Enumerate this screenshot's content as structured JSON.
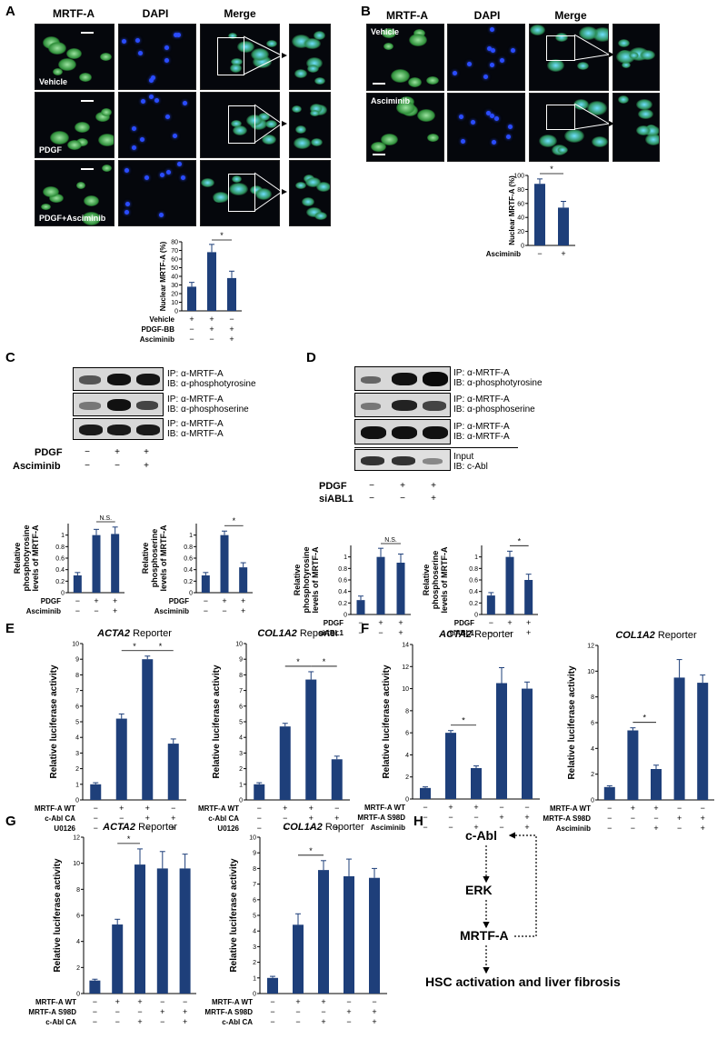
{
  "panels": {
    "A": "A",
    "B": "B",
    "C": "C",
    "D": "D",
    "E": "E",
    "F": "F",
    "G": "G",
    "H": "H"
  },
  "panelA": {
    "columns": [
      "MRTF-A",
      "DAPI",
      "Merge"
    ],
    "rows": [
      "Vehicle",
      "PDGF",
      "PDGF+Asciminib"
    ]
  },
  "panelB": {
    "columns": [
      "MRTF-A",
      "DAPI",
      "Merge"
    ],
    "rows": [
      "Vehicle",
      "Asciminib"
    ]
  },
  "panelC_blot": {
    "labels": [
      [
        "IP: α-MRTF-A",
        "IB: α-phosphotyrosine"
      ],
      [
        "IP: α-MRTF-A",
        "IB: α-phosphoserine"
      ],
      [
        "IP: α-MRTF-A",
        "IB: α-MRTF-A"
      ]
    ],
    "treatments": [
      "PDGF",
      "Asciminib"
    ],
    "signs": [
      [
        "−",
        "+",
        "+"
      ],
      [
        "−",
        "−",
        "+"
      ]
    ]
  },
  "panelD_blot": {
    "labels": [
      [
        "IP: α-MRTF-A",
        "IB: α-phosphotyrosine"
      ],
      [
        "IP: α-MRTF-A",
        "IB: α-phosphoserine"
      ],
      [
        "IP: α-MRTF-A",
        "IB: α-MRTF-A"
      ],
      [
        "Input",
        "IB: c-Abl"
      ]
    ],
    "treatments": [
      "PDGF",
      "siABL1"
    ],
    "signs": [
      [
        "−",
        "+",
        "+"
      ],
      [
        "−",
        "−",
        "+"
      ]
    ]
  },
  "panelH": {
    "nodes": [
      "c-Abl",
      "ERK",
      "MRTF-A",
      "HSC activation and liver fibrosis"
    ]
  },
  "chart_data": [
    {
      "id": "A_chart",
      "type": "bar",
      "ylabel": "Nuclear MRTF-A (%)",
      "ylim": [
        0,
        80
      ],
      "yticks": [
        0,
        10,
        20,
        30,
        40,
        50,
        60,
        70,
        80
      ],
      "values": [
        28,
        68,
        38
      ],
      "errors": [
        5,
        9,
        8
      ],
      "treatments": [
        "Vehicle",
        "PDGF-BB",
        "Asciminib"
      ],
      "signs": [
        [
          "+",
          "+",
          "−"
        ],
        [
          "−",
          "+",
          "+"
        ],
        [
          "−",
          "−",
          "+"
        ]
      ],
      "sig": [
        {
          "from": 1,
          "to": 2,
          "label": "*"
        }
      ]
    },
    {
      "id": "B_chart",
      "type": "bar",
      "ylabel": "Nuclear MRTF-A (%)",
      "ylim": [
        0,
        100
      ],
      "yticks": [
        0,
        20,
        40,
        60,
        80,
        100
      ],
      "values": [
        88,
        54
      ],
      "errors": [
        7,
        9
      ],
      "treatments": [
        "Asciminib"
      ],
      "signs": [
        [
          "−",
          "+"
        ]
      ],
      "sig": [
        {
          "from": 0,
          "to": 1,
          "label": "*"
        }
      ]
    },
    {
      "id": "C1",
      "type": "bar",
      "ylabel": [
        "Relative",
        "phosphotyrosine",
        "levels of MRTF-A"
      ],
      "ylim": [
        0,
        1.2
      ],
      "yticks": [
        0,
        0.2,
        0.4,
        0.6,
        0.8,
        1
      ],
      "values": [
        0.3,
        1.0,
        1.02
      ],
      "errors": [
        0.05,
        0.1,
        0.12
      ],
      "treatments": [
        "PDGF",
        "Asciminib"
      ],
      "signs": [
        [
          "−",
          "+",
          "+"
        ],
        [
          "−",
          "−",
          "+"
        ]
      ],
      "sig": [
        {
          "from": 1,
          "to": 2,
          "label": "N.S."
        }
      ]
    },
    {
      "id": "C2",
      "type": "bar",
      "ylabel": [
        "Relative",
        "phosphoserine",
        "levels of MRTF-A"
      ],
      "ylim": [
        0,
        1.2
      ],
      "yticks": [
        0,
        0.2,
        0.4,
        0.6,
        0.8,
        1
      ],
      "values": [
        0.3,
        1.0,
        0.44
      ],
      "errors": [
        0.05,
        0.07,
        0.08
      ],
      "treatments": [
        "PDGF",
        "Asciminib"
      ],
      "signs": [
        [
          "−",
          "+",
          "+"
        ],
        [
          "−",
          "−",
          "+"
        ]
      ],
      "sig": [
        {
          "from": 1,
          "to": 2,
          "label": "*"
        }
      ]
    },
    {
      "id": "D1",
      "type": "bar",
      "ylabel": [
        "Relative",
        "phosphotyrosine",
        "levels of MRTF-A"
      ],
      "ylim": [
        0,
        1.2
      ],
      "yticks": [
        0,
        0.2,
        0.4,
        0.6,
        0.8,
        1
      ],
      "values": [
        0.25,
        1.0,
        0.9
      ],
      "errors": [
        0.07,
        0.15,
        0.15
      ],
      "treatments": [
        "PDGF",
        "siABL1"
      ],
      "signs": [
        [
          "−",
          "+",
          "+"
        ],
        [
          "−",
          "−",
          "+"
        ]
      ],
      "sig": [
        {
          "from": 1,
          "to": 2,
          "label": "N.S."
        }
      ]
    },
    {
      "id": "D2",
      "type": "bar",
      "ylabel": [
        "Relative",
        "phosphoserine",
        "levels of MRTF-A"
      ],
      "ylim": [
        0,
        1.2
      ],
      "yticks": [
        0,
        0.2,
        0.4,
        0.6,
        0.8,
        1
      ],
      "values": [
        0.33,
        1.0,
        0.6
      ],
      "errors": [
        0.05,
        0.1,
        0.1
      ],
      "treatments": [
        "PDGF",
        "siABL1"
      ],
      "signs": [
        [
          "−",
          "+",
          "+"
        ],
        [
          "−",
          "−",
          "+"
        ]
      ],
      "sig": [
        {
          "from": 1,
          "to": 2,
          "label": "*"
        }
      ]
    },
    {
      "id": "E1",
      "type": "bar",
      "title": "ACTA2 Reporter",
      "ylabel": "Relative luciferase activity",
      "ylim": [
        0,
        10
      ],
      "yticks": [
        0,
        1,
        2,
        3,
        4,
        5,
        6,
        7,
        8,
        9,
        10
      ],
      "values": [
        1.0,
        5.2,
        9.0,
        3.6
      ],
      "errors": [
        0.1,
        0.3,
        0.2,
        0.3
      ],
      "treatments": [
        "MRTF-A WT",
        "c-Abl CA",
        "U0126"
      ],
      "signs": [
        [
          "−",
          "+",
          "+",
          "−"
        ],
        [
          "−",
          "−",
          "+",
          "+"
        ],
        [
          "−",
          "−",
          "−",
          "+"
        ]
      ],
      "sig": [
        {
          "from": 1,
          "to": 2,
          "label": "*"
        },
        {
          "from": 2,
          "to": 3,
          "label": "*"
        }
      ]
    },
    {
      "id": "E2",
      "type": "bar",
      "title": "COL1A2 Reporter",
      "ylabel": "Relative luciferase activity",
      "ylim": [
        0,
        10
      ],
      "yticks": [
        0,
        1,
        2,
        3,
        4,
        5,
        6,
        7,
        8,
        9,
        10
      ],
      "values": [
        1.0,
        4.7,
        7.7,
        2.6
      ],
      "errors": [
        0.1,
        0.2,
        0.5,
        0.2
      ],
      "treatments": [
        "MRTF-A WT",
        "c-Abl CA",
        "U0126"
      ],
      "signs": [
        [
          "−",
          "+",
          "+",
          "−"
        ],
        [
          "−",
          "−",
          "+",
          "+"
        ],
        [
          "−",
          "−",
          "−",
          "+"
        ]
      ],
      "sig": [
        {
          "from": 1,
          "to": 2,
          "label": "*"
        },
        {
          "from": 2,
          "to": 3,
          "label": "*"
        }
      ]
    },
    {
      "id": "F1",
      "type": "bar",
      "title": "ACTA2 Reporter",
      "ylabel": "Relative luciferase activity",
      "ylim": [
        0,
        14
      ],
      "yticks": [
        0,
        2,
        4,
        6,
        8,
        10,
        12,
        14
      ],
      "values": [
        1.0,
        6.0,
        2.8,
        10.5,
        10.0
      ],
      "errors": [
        0.1,
        0.2,
        0.2,
        1.4,
        0.6
      ],
      "treatments": [
        "MRTF-A WT",
        "MRTF-A S98D",
        "Asciminib"
      ],
      "signs": [
        [
          "−",
          "+",
          "+",
          "−",
          "−"
        ],
        [
          "−",
          "−",
          "−",
          "+",
          "+"
        ],
        [
          "−",
          "−",
          "+",
          "−",
          "+"
        ]
      ],
      "sig": [
        {
          "from": 1,
          "to": 2,
          "label": "*"
        }
      ]
    },
    {
      "id": "F2",
      "type": "bar",
      "title": "COL1A2 Reporter",
      "ylabel": "Relative luciferase activity",
      "ylim": [
        0,
        12
      ],
      "yticks": [
        0,
        2,
        4,
        6,
        8,
        10,
        12
      ],
      "values": [
        1.0,
        5.4,
        2.4,
        9.5,
        9.1
      ],
      "errors": [
        0.1,
        0.2,
        0.3,
        1.4,
        0.6
      ],
      "treatments": [
        "MRTF-A WT",
        "MRTF-A S98D",
        "Asciminib"
      ],
      "signs": [
        [
          "−",
          "+",
          "+",
          "−",
          "−"
        ],
        [
          "−",
          "−",
          "−",
          "+",
          "+"
        ],
        [
          "−",
          "−",
          "+",
          "−",
          "+"
        ]
      ],
      "sig": [
        {
          "from": 1,
          "to": 2,
          "label": "*"
        }
      ]
    },
    {
      "id": "G1",
      "type": "bar",
      "title": "ACTA2 Reporter",
      "ylabel": "Relative luciferase activity",
      "ylim": [
        0,
        12
      ],
      "yticks": [
        0,
        2,
        4,
        6,
        8,
        10,
        12
      ],
      "values": [
        1.0,
        5.3,
        9.9,
        9.6,
        9.6
      ],
      "errors": [
        0.1,
        0.4,
        1.2,
        1.3,
        1.1
      ],
      "treatments": [
        "MRTF-A WT",
        "MRTF-A S98D",
        "c-Abl CA"
      ],
      "signs": [
        [
          "−",
          "+",
          "+",
          "−",
          "−"
        ],
        [
          "−",
          "−",
          "−",
          "+",
          "+"
        ],
        [
          "−",
          "−",
          "+",
          "−",
          "+"
        ]
      ],
      "sig": [
        {
          "from": 1,
          "to": 2,
          "label": "*"
        }
      ]
    },
    {
      "id": "G2",
      "type": "bar",
      "title": "COL1A2 Reporter",
      "ylabel": "Relative luciferase activity",
      "ylim": [
        0,
        10
      ],
      "yticks": [
        0,
        1,
        2,
        3,
        4,
        5,
        6,
        7,
        8,
        9,
        10
      ],
      "values": [
        1.0,
        4.4,
        7.9,
        7.5,
        7.4
      ],
      "errors": [
        0.1,
        0.7,
        0.6,
        1.1,
        0.6
      ],
      "treatments": [
        "MRTF-A WT",
        "MRTF-A S98D",
        "c-Abl CA"
      ],
      "signs": [
        [
          "−",
          "+",
          "+",
          "−",
          "−"
        ],
        [
          "−",
          "−",
          "−",
          "+",
          "+"
        ],
        [
          "−",
          "−",
          "+",
          "−",
          "+"
        ]
      ],
      "sig": [
        {
          "from": 1,
          "to": 2,
          "label": "*"
        }
      ]
    }
  ]
}
